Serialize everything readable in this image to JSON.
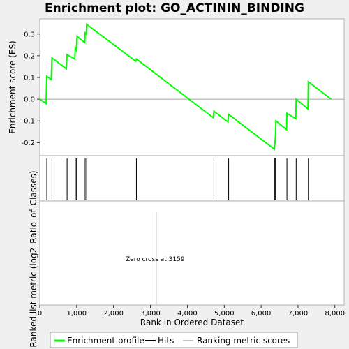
{
  "chart_data": {
    "type": "line",
    "title": "Enrichment plot: GO_ACTININ_BINDING",
    "upper_panel": {
      "ylabel": "Enrichment score (ES)",
      "ylim": [
        -0.26,
        0.37
      ],
      "yticks": [
        0.3,
        0.2,
        0.1,
        0.0,
        -0.1,
        -0.2
      ],
      "ytick_labels": [
        "0.3",
        "0.2",
        "0.1",
        "0.0",
        "-0.1",
        "-0.2"
      ],
      "series": [
        {
          "color": "#00ff00",
          "x": [
            0,
            170,
            190,
            310,
            330,
            720,
            740,
            950,
            960,
            990,
            1010,
            1220,
            1230,
            1260,
            1270,
            2600,
            2620,
            4700,
            4720,
            5100,
            5120,
            6360,
            6370,
            6390,
            6400,
            6690,
            6700,
            6940,
            6950,
            7270,
            7280,
            7900
          ],
          "y": [
            0.0,
            -0.02,
            0.105,
            0.09,
            0.19,
            0.14,
            0.205,
            0.185,
            0.235,
            0.225,
            0.29,
            0.26,
            0.305,
            0.3,
            0.345,
            0.175,
            0.185,
            -0.085,
            -0.055,
            -0.105,
            -0.07,
            -0.23,
            -0.21,
            -0.17,
            -0.1,
            -0.14,
            -0.065,
            -0.09,
            0.0,
            -0.045,
            0.08,
            0.0
          ]
        }
      ]
    },
    "hits": [
      190,
      330,
      740,
      960,
      990,
      1010,
      1230,
      1270,
      2620,
      4720,
      5120,
      6370,
      6390,
      6400,
      6700,
      6950,
      7280
    ],
    "lower_panel": {
      "ylabel": "Ranked list metric (log2_Ratio_of_Classes)",
      "zero_cross_label": "Zero cross at 3159",
      "zero_cross": 3159
    },
    "xlabel": "Rank in Ordered Dataset",
    "xlim": [
      0,
      8250
    ],
    "xticks": [
      0,
      1000,
      2000,
      3000,
      4000,
      5000,
      6000,
      7000,
      8000
    ],
    "xtick_labels": [
      "0",
      "1,000",
      "2,000",
      "3,000",
      "4,000",
      "5,000",
      "6,000",
      "7,000",
      "8,000"
    ],
    "n_genes": 7900,
    "heatmap_segments": [
      {
        "end": 300,
        "color": "#f0283a"
      },
      {
        "end": 1150,
        "color": "#ff4a57"
      },
      {
        "end": 1550,
        "color": "#ff6e78"
      },
      {
        "end": 2250,
        "color": "#ff959c"
      },
      {
        "end": 2700,
        "color": "#ffc6e8"
      },
      {
        "end": 3159,
        "color": "#ffdaf2"
      },
      {
        "end": 4250,
        "color": "#dedcff"
      },
      {
        "end": 4900,
        "color": "#c8c6ff"
      },
      {
        "end": 5350,
        "color": "#b2b0ff"
      },
      {
        "end": 6150,
        "color": "#8a88ff"
      },
      {
        "end": 6350,
        "color": "#6e66f8"
      },
      {
        "end": 7550,
        "color": "#6040ee"
      },
      {
        "end": 7900,
        "color": "#4a10dd"
      }
    ],
    "legend": [
      {
        "label": "Enrichment profile",
        "color": "#00ff00"
      },
      {
        "label": "Hits",
        "color": "#000000"
      },
      {
        "label": "Ranking metric scores",
        "color": "#c0c0c0"
      }
    ]
  }
}
